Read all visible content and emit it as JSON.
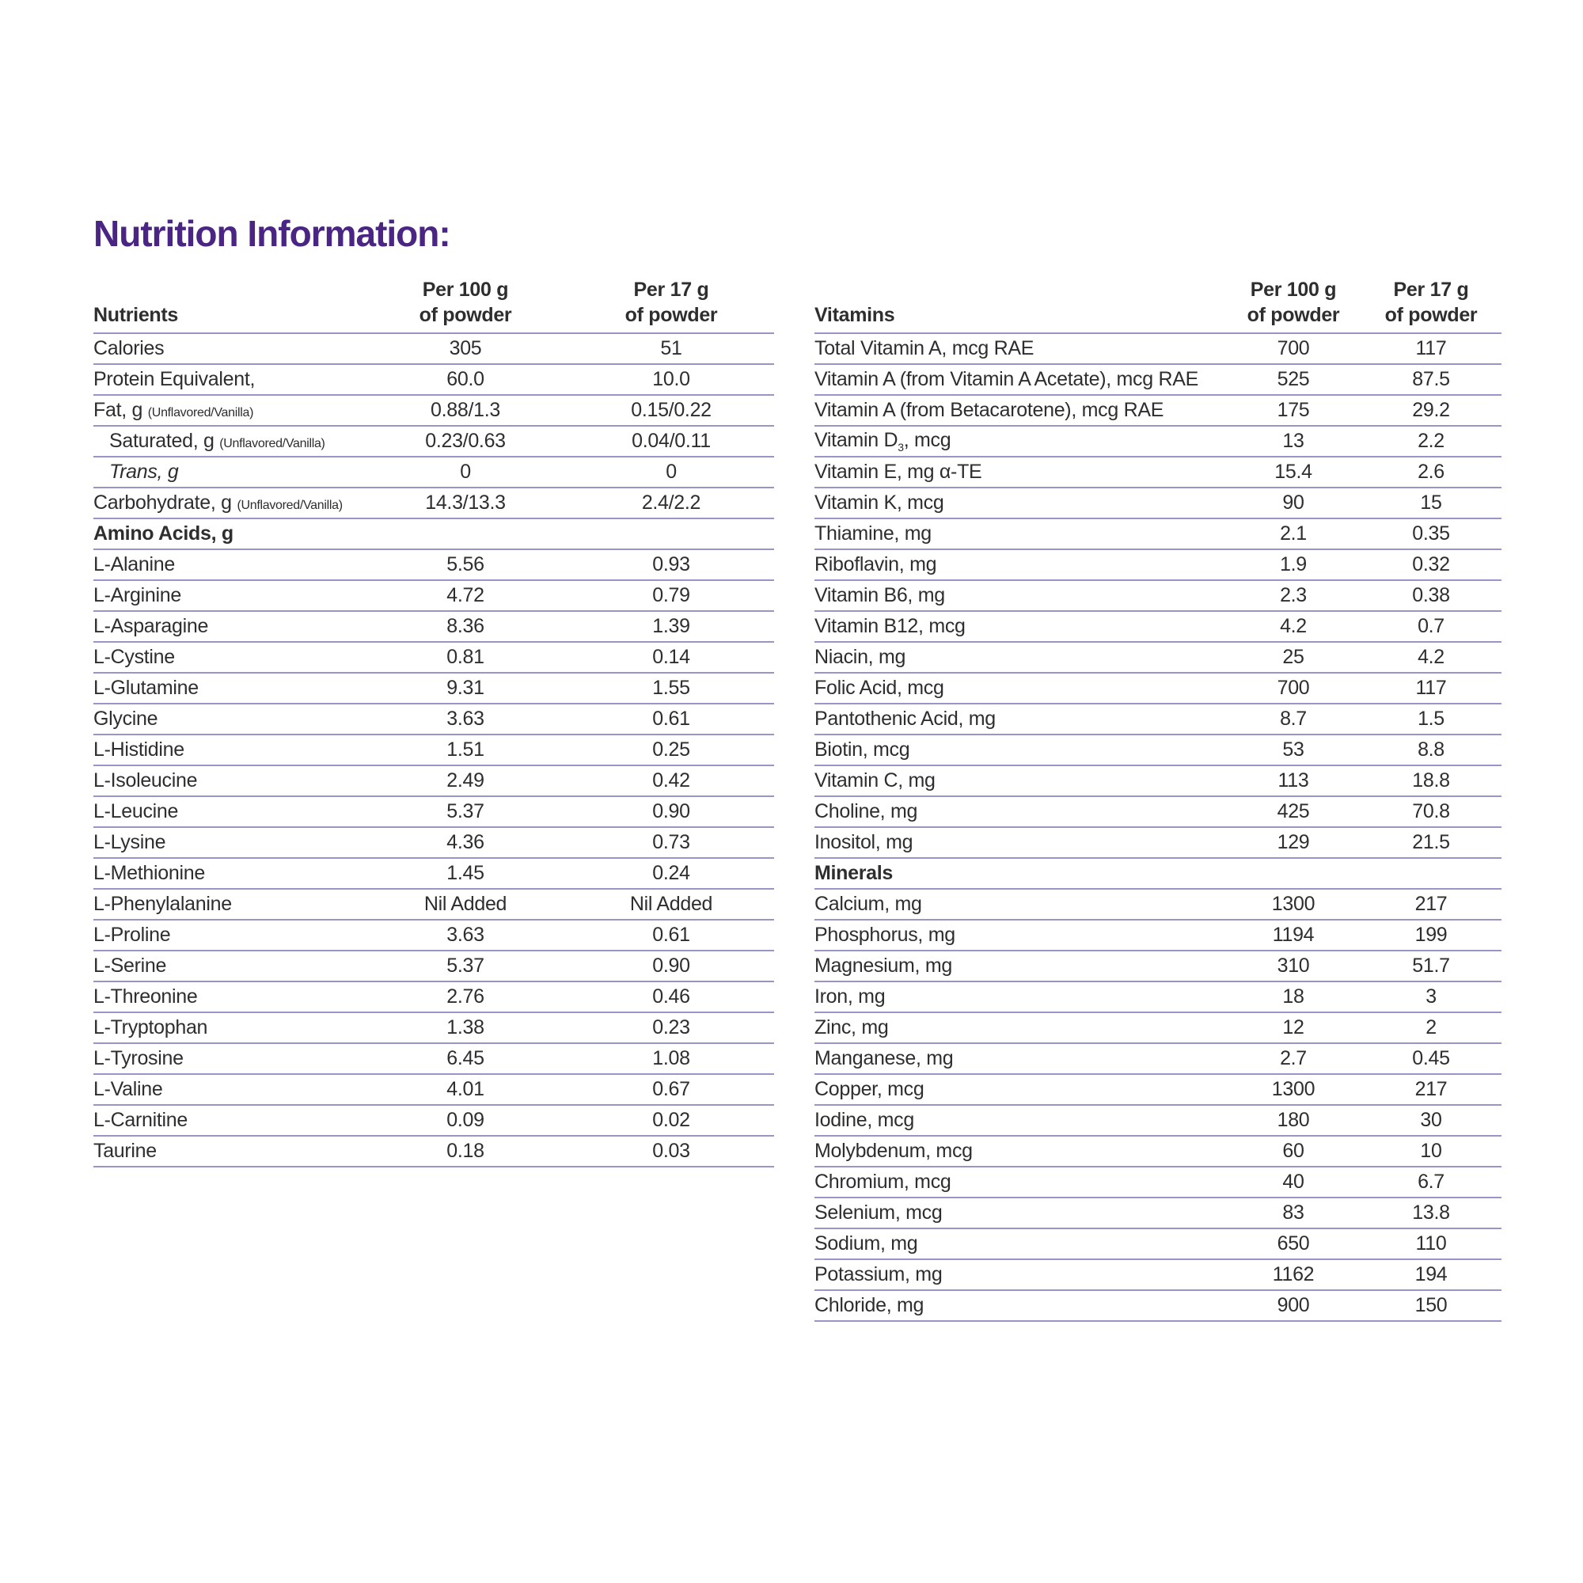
{
  "title": "Nutrition Information:",
  "colors": {
    "title": "#4a2583",
    "rule": "#9a95c8",
    "text": "#2e2e2e"
  },
  "left_table": {
    "headers": [
      "Nutrients",
      "Per 100 g\nof powder",
      "Per 17 g\nof powder"
    ],
    "rows": [
      {
        "name": "Calories",
        "v100": "305",
        "v17": "51"
      },
      {
        "name": "Protein Equivalent,",
        "v100": "60.0",
        "v17": "10.0"
      },
      {
        "name": "Fat, g",
        "note": "(Unflavored/Vanilla)",
        "v100": "0.88/1.3",
        "v17": "0.15/0.22"
      },
      {
        "name": "Saturated, g",
        "note": "(Unflavored/Vanilla)",
        "indent": true,
        "v100": "0.23/0.63",
        "v17": "0.04/0.11"
      },
      {
        "name": "Trans, g",
        "indent": true,
        "italic": true,
        "v100": "0",
        "v17": "0"
      },
      {
        "name": "Carbohydrate, g",
        "note": "(Unflavored/Vanilla)",
        "v100": "14.3/13.3",
        "v17": "2.4/2.2"
      },
      {
        "name": "Amino Acids, g",
        "section": true
      },
      {
        "name": "L-Alanine",
        "v100": "5.56",
        "v17": "0.93"
      },
      {
        "name": "L-Arginine",
        "v100": "4.72",
        "v17": "0.79"
      },
      {
        "name": "L-Asparagine",
        "v100": "8.36",
        "v17": "1.39"
      },
      {
        "name": "L-Cystine",
        "v100": "0.81",
        "v17": "0.14"
      },
      {
        "name": "L-Glutamine",
        "v100": "9.31",
        "v17": "1.55"
      },
      {
        "name": "Glycine",
        "v100": "3.63",
        "v17": "0.61"
      },
      {
        "name": "L-Histidine",
        "v100": "1.51",
        "v17": "0.25"
      },
      {
        "name": "L-Isoleucine",
        "v100": "2.49",
        "v17": "0.42"
      },
      {
        "name": "L-Leucine",
        "v100": "5.37",
        "v17": "0.90"
      },
      {
        "name": "L-Lysine",
        "v100": "4.36",
        "v17": "0.73"
      },
      {
        "name": "L-Methionine",
        "v100": "1.45",
        "v17": "0.24"
      },
      {
        "name": "L-Phenylalanine",
        "v100": "Nil Added",
        "v17": "Nil Added"
      },
      {
        "name": "L-Proline",
        "v100": "3.63",
        "v17": "0.61"
      },
      {
        "name": "L-Serine",
        "v100": "5.37",
        "v17": "0.90"
      },
      {
        "name": "L-Threonine",
        "v100": "2.76",
        "v17": "0.46"
      },
      {
        "name": "L-Tryptophan",
        "v100": "1.38",
        "v17": "0.23"
      },
      {
        "name": "L-Tyrosine",
        "v100": "6.45",
        "v17": "1.08"
      },
      {
        "name": "L-Valine",
        "v100": "4.01",
        "v17": "0.67"
      },
      {
        "name": "L-Carnitine",
        "v100": "0.09",
        "v17": "0.02"
      },
      {
        "name": "Taurine",
        "v100": "0.18",
        "v17": "0.03"
      }
    ]
  },
  "right_table": {
    "headers": [
      "Vitamins",
      "Per 100 g\nof powder",
      "Per 17 g\nof powder"
    ],
    "rows": [
      {
        "name": "Total Vitamin A, mcg RAE",
        "v100": "700",
        "v17": "117"
      },
      {
        "name": "Vitamin A (from Vitamin A Acetate), mcg RAE",
        "v100": "525",
        "v17": "87.5"
      },
      {
        "name": "Vitamin A (from Betacarotene), mcg RAE",
        "v100": "175",
        "v17": "29.2"
      },
      {
        "name": "Vitamin D",
        "sub": "3",
        "after": ", mcg",
        "v100": "13",
        "v17": "2.2"
      },
      {
        "name": "Vitamin E, mg α-TE",
        "v100": "15.4",
        "v17": "2.6"
      },
      {
        "name": "Vitamin K, mcg",
        "v100": "90",
        "v17": "15"
      },
      {
        "name": "Thiamine, mg",
        "v100": "2.1",
        "v17": "0.35"
      },
      {
        "name": "Riboflavin, mg",
        "v100": "1.9",
        "v17": "0.32"
      },
      {
        "name": "Vitamin B6, mg",
        "v100": "2.3",
        "v17": "0.38"
      },
      {
        "name": "Vitamin B12, mcg",
        "v100": "4.2",
        "v17": "0.7"
      },
      {
        "name": "Niacin, mg",
        "v100": "25",
        "v17": "4.2"
      },
      {
        "name": "Folic Acid, mcg",
        "v100": "700",
        "v17": "117"
      },
      {
        "name": "Pantothenic Acid, mg",
        "v100": "8.7",
        "v17": "1.5"
      },
      {
        "name": "Biotin, mcg",
        "v100": "53",
        "v17": "8.8"
      },
      {
        "name": "Vitamin C, mg",
        "v100": "113",
        "v17": "18.8"
      },
      {
        "name": "Choline, mg",
        "v100": "425",
        "v17": "70.8"
      },
      {
        "name": "Inositol, mg",
        "v100": "129",
        "v17": "21.5"
      },
      {
        "name": "Minerals",
        "section": true
      },
      {
        "name": "Calcium, mg",
        "v100": "1300",
        "v17": "217"
      },
      {
        "name": "Phosphorus, mg",
        "v100": "1194",
        "v17": "199"
      },
      {
        "name": "Magnesium, mg",
        "v100": "310",
        "v17": "51.7"
      },
      {
        "name": "Iron, mg",
        "v100": "18",
        "v17": "3"
      },
      {
        "name": "Zinc, mg",
        "v100": "12",
        "v17": "2"
      },
      {
        "name": "Manganese, mg",
        "v100": "2.7",
        "v17": "0.45"
      },
      {
        "name": "Copper, mcg",
        "v100": "1300",
        "v17": "217"
      },
      {
        "name": "Iodine, mcg",
        "v100": "180",
        "v17": "30"
      },
      {
        "name": "Molybdenum, mcg",
        "v100": "60",
        "v17": "10"
      },
      {
        "name": "Chromium, mcg",
        "v100": "40",
        "v17": "6.7"
      },
      {
        "name": "Selenium, mcg",
        "v100": "83",
        "v17": "13.8"
      },
      {
        "name": "Sodium, mg",
        "v100": "650",
        "v17": "110"
      },
      {
        "name": "Potassium, mg",
        "v100": "1162",
        "v17": "194"
      },
      {
        "name": "Chloride, mg",
        "v100": "900",
        "v17": "150"
      }
    ]
  }
}
